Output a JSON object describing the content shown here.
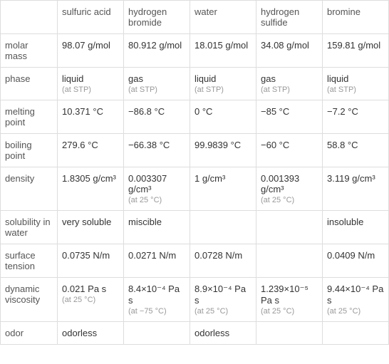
{
  "columns": [
    {
      "label": "sulfuric acid"
    },
    {
      "label": "hydrogen bromide"
    },
    {
      "label": "water"
    },
    {
      "label": "hydrogen sulfide"
    },
    {
      "label": "bromine"
    }
  ],
  "rows": [
    {
      "header": "molar mass",
      "cells": [
        {
          "main": "98.07 g/mol",
          "sub": ""
        },
        {
          "main": "80.912 g/mol",
          "sub": ""
        },
        {
          "main": "18.015 g/mol",
          "sub": ""
        },
        {
          "main": "34.08 g/mol",
          "sub": ""
        },
        {
          "main": "159.81 g/mol",
          "sub": ""
        }
      ]
    },
    {
      "header": "phase",
      "cells": [
        {
          "main": "liquid",
          "sub": "(at STP)"
        },
        {
          "main": "gas",
          "sub": "(at STP)"
        },
        {
          "main": "liquid",
          "sub": "(at STP)"
        },
        {
          "main": "gas",
          "sub": "(at STP)"
        },
        {
          "main": "liquid",
          "sub": "(at STP)"
        }
      ]
    },
    {
      "header": "melting point",
      "cells": [
        {
          "main": "10.371 °C",
          "sub": ""
        },
        {
          "main": "−86.8 °C",
          "sub": ""
        },
        {
          "main": "0 °C",
          "sub": ""
        },
        {
          "main": "−85 °C",
          "sub": ""
        },
        {
          "main": "−7.2 °C",
          "sub": ""
        }
      ]
    },
    {
      "header": "boiling point",
      "cells": [
        {
          "main": "279.6 °C",
          "sub": ""
        },
        {
          "main": "−66.38 °C",
          "sub": ""
        },
        {
          "main": "99.9839 °C",
          "sub": ""
        },
        {
          "main": "−60 °C",
          "sub": ""
        },
        {
          "main": "58.8 °C",
          "sub": ""
        }
      ]
    },
    {
      "header": "density",
      "cells": [
        {
          "main": "1.8305 g/cm³",
          "sub": ""
        },
        {
          "main": "0.003307 g/cm³",
          "sub": "(at 25 °C)"
        },
        {
          "main": "1 g/cm³",
          "sub": ""
        },
        {
          "main": "0.001393 g/cm³",
          "sub": "(at 25 °C)"
        },
        {
          "main": "3.119 g/cm³",
          "sub": ""
        }
      ]
    },
    {
      "header": "solubility in water",
      "cells": [
        {
          "main": "very soluble",
          "sub": ""
        },
        {
          "main": "miscible",
          "sub": ""
        },
        {
          "main": "",
          "sub": ""
        },
        {
          "main": "",
          "sub": ""
        },
        {
          "main": "insoluble",
          "sub": ""
        }
      ]
    },
    {
      "header": "surface tension",
      "cells": [
        {
          "main": "0.0735 N/m",
          "sub": ""
        },
        {
          "main": "0.0271 N/m",
          "sub": ""
        },
        {
          "main": "0.0728 N/m",
          "sub": ""
        },
        {
          "main": "",
          "sub": ""
        },
        {
          "main": "0.0409 N/m",
          "sub": ""
        }
      ]
    },
    {
      "header": "dynamic viscosity",
      "cells": [
        {
          "main": "0.021 Pa s",
          "sub": "(at 25 °C)"
        },
        {
          "main": "8.4×10⁻⁴ Pa s",
          "sub": "(at −75 °C)"
        },
        {
          "main": "8.9×10⁻⁴ Pa s",
          "sub": "(at 25 °C)"
        },
        {
          "main": "1.239×10⁻⁵ Pa s",
          "sub": "(at 25 °C)"
        },
        {
          "main": "9.44×10⁻⁴ Pa s",
          "sub": "(at 25 °C)"
        }
      ]
    },
    {
      "header": "odor",
      "cells": [
        {
          "main": "odorless",
          "sub": ""
        },
        {
          "main": "",
          "sub": ""
        },
        {
          "main": "odorless",
          "sub": ""
        },
        {
          "main": "",
          "sub": ""
        },
        {
          "main": "",
          "sub": ""
        }
      ]
    }
  ],
  "styles": {
    "border_color": "#dddddd",
    "text_color": "#333333",
    "header_color": "#555555",
    "sub_color": "#999999",
    "background": "#ffffff",
    "font_size_main": 13,
    "font_size_sub": 11
  }
}
